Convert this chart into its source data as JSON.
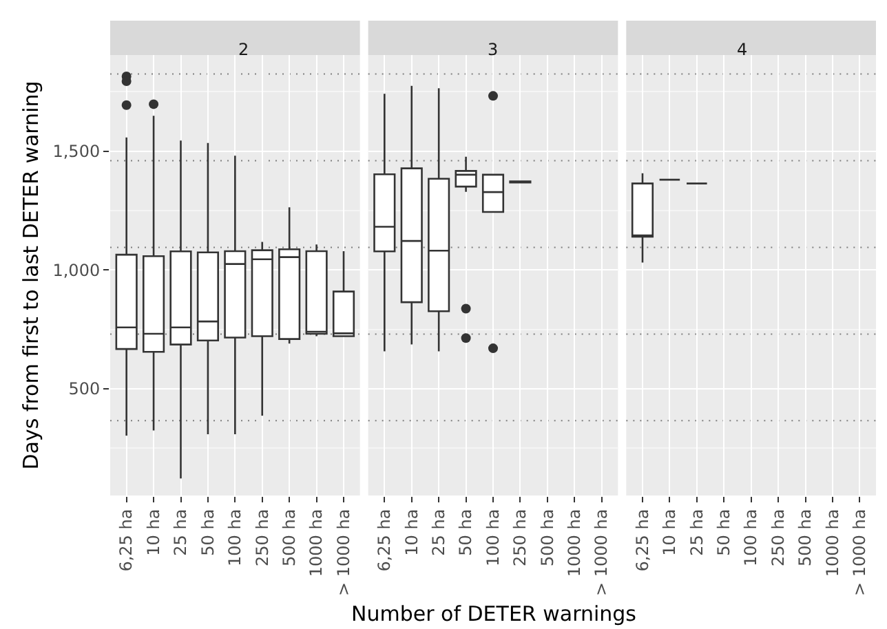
{
  "chart_data": [
    {
      "type": "box",
      "title": "2",
      "ylabel": "Days from first to last DETER warning",
      "categories": [
        "6,25 ha",
        "10 ha",
        "25 ha",
        "50 ha",
        "100 ha",
        "250 ha",
        "500 ha",
        "1000 ha",
        "> 1000 ha"
      ],
      "ylim": [
        50,
        1905
      ],
      "yticks": [
        {
          "value": 500,
          "label": "500"
        },
        {
          "value": 1000,
          "label": "1,000"
        },
        {
          "value": 1500,
          "label": "1,500"
        }
      ],
      "grid": true,
      "boxes": [
        {
          "low": 302,
          "q1": 667,
          "median": 758,
          "q3": 1064,
          "high": 1558,
          "outliers": [
            1815,
            1795,
            1694
          ]
        },
        {
          "low": 324,
          "q1": 655,
          "median": 731,
          "q3": 1058,
          "high": 1649,
          "outliers": [
            1698
          ]
        },
        {
          "low": 122,
          "q1": 686,
          "median": 758,
          "q3": 1078,
          "high": 1545
        },
        {
          "low": 308,
          "q1": 703,
          "median": 783,
          "q3": 1074,
          "high": 1535
        },
        {
          "low": 308,
          "q1": 715,
          "median": 1025,
          "q3": 1079,
          "high": 1481
        },
        {
          "low": 386,
          "q1": 721,
          "median": 1045,
          "q3": 1083,
          "high": 1118
        },
        {
          "low": 690,
          "q1": 709,
          "median": 1054,
          "q3": 1087,
          "high": 1264
        },
        {
          "low": 721,
          "q1": 731,
          "median": 740,
          "q3": 1079,
          "high": 1107
        },
        {
          "low": 721,
          "q1": 721,
          "median": 733,
          "q3": 909,
          "high": 1079
        }
      ],
      "ref_lines": [
        {
          "axis": "y",
          "value": 365,
          "label": null,
          "color": "#7f7f7f",
          "line_style": "dotted"
        },
        {
          "axis": "y",
          "value": 730,
          "label": null,
          "color": "#7f7f7f",
          "line_style": "dotted"
        },
        {
          "axis": "y",
          "value": 1095,
          "label": null,
          "color": "#7f7f7f",
          "line_style": "dotted"
        },
        {
          "axis": "y",
          "value": 1460,
          "label": null,
          "color": "#7f7f7f",
          "line_style": "dotted"
        },
        {
          "axis": "y",
          "value": 1825,
          "label": null,
          "color": "#7f7f7f",
          "line_style": "dotted"
        }
      ]
    },
    {
      "type": "box",
      "title": "3",
      "xlabel": "Number of DETER warnings",
      "categories": [
        "6,25 ha",
        "10 ha",
        "25 ha",
        "50 ha",
        "100 ha",
        "250 ha",
        "500 ha",
        "1000 ha",
        "> 1000 ha"
      ],
      "ylim": [
        50,
        1905
      ],
      "yticks": [
        {
          "value": 500,
          "label": null
        },
        {
          "value": 1000,
          "label": null
        },
        {
          "value": 1500,
          "label": null
        }
      ],
      "tick_labels": "x",
      "grid": true,
      "boxes": [
        {
          "low": 657,
          "q1": 1078,
          "median": 1182,
          "q3": 1403,
          "high": 1742
        },
        {
          "low": 686,
          "q1": 864,
          "median": 1122,
          "q3": 1428,
          "high": 1775
        },
        {
          "low": 657,
          "q1": 826,
          "median": 1081,
          "q3": 1384,
          "high": 1765
        },
        {
          "low": 1329,
          "q1": 1351,
          "median": 1401,
          "q3": 1417,
          "high": 1477,
          "outliers": [
            837,
            713
          ]
        },
        {
          "low": 1244,
          "q1": 1244,
          "median": 1328,
          "q3": 1401,
          "high": 1401,
          "outliers": [
            1733,
            670
          ]
        },
        {
          "low": 1368,
          "q1": 1368,
          "median": 1370,
          "q3": 1373,
          "high": 1373
        },
        null,
        null,
        null
      ],
      "ref_lines": [
        {
          "axis": "y",
          "value": 365,
          "label": null,
          "color": "#7f7f7f",
          "line_style": "dotted"
        },
        {
          "axis": "y",
          "value": 730,
          "label": null,
          "color": "#7f7f7f",
          "line_style": "dotted"
        },
        {
          "axis": "y",
          "value": 1095,
          "label": null,
          "color": "#7f7f7f",
          "line_style": "dotted"
        },
        {
          "axis": "y",
          "value": 1460,
          "label": null,
          "color": "#7f7f7f",
          "line_style": "dotted"
        },
        {
          "axis": "y",
          "value": 1825,
          "label": null,
          "color": "#7f7f7f",
          "line_style": "dotted"
        }
      ]
    },
    {
      "type": "box",
      "title": "4",
      "categories": [
        "6,25 ha",
        "10 ha",
        "25 ha",
        "50 ha",
        "100 ha",
        "250 ha",
        "500 ha",
        "1000 ha",
        "> 1000 ha"
      ],
      "ylim": [
        50,
        1905
      ],
      "yticks": [
        {
          "value": 500,
          "label": null
        },
        {
          "value": 1000,
          "label": null
        },
        {
          "value": 1500,
          "label": null
        }
      ],
      "tick_labels": "x",
      "grid": true,
      "boxes": [
        {
          "low": 1031,
          "q1": 1140,
          "median": 1145,
          "q3": 1364,
          "high": 1407
        },
        {
          "low": 1380,
          "q1": 1380,
          "median": 1380,
          "q3": 1380,
          "high": 1380
        },
        {
          "low": 1364,
          "q1": 1364,
          "median": 1364,
          "q3": 1364,
          "high": 1364
        },
        null,
        null,
        null,
        null,
        null,
        null
      ],
      "ref_lines": [
        {
          "axis": "y",
          "value": 365,
          "label": null,
          "color": "#7f7f7f",
          "line_style": "dotted"
        },
        {
          "axis": "y",
          "value": 730,
          "label": null,
          "color": "#7f7f7f",
          "line_style": "dotted"
        },
        {
          "axis": "y",
          "value": 1095,
          "label": null,
          "color": "#7f7f7f",
          "line_style": "dotted"
        },
        {
          "axis": "y",
          "value": 1460,
          "label": null,
          "color": "#7f7f7f",
          "line_style": "dotted"
        },
        {
          "axis": "y",
          "value": 1825,
          "label": null,
          "color": "#7f7f7f",
          "line_style": "dotted"
        }
      ]
    }
  ]
}
